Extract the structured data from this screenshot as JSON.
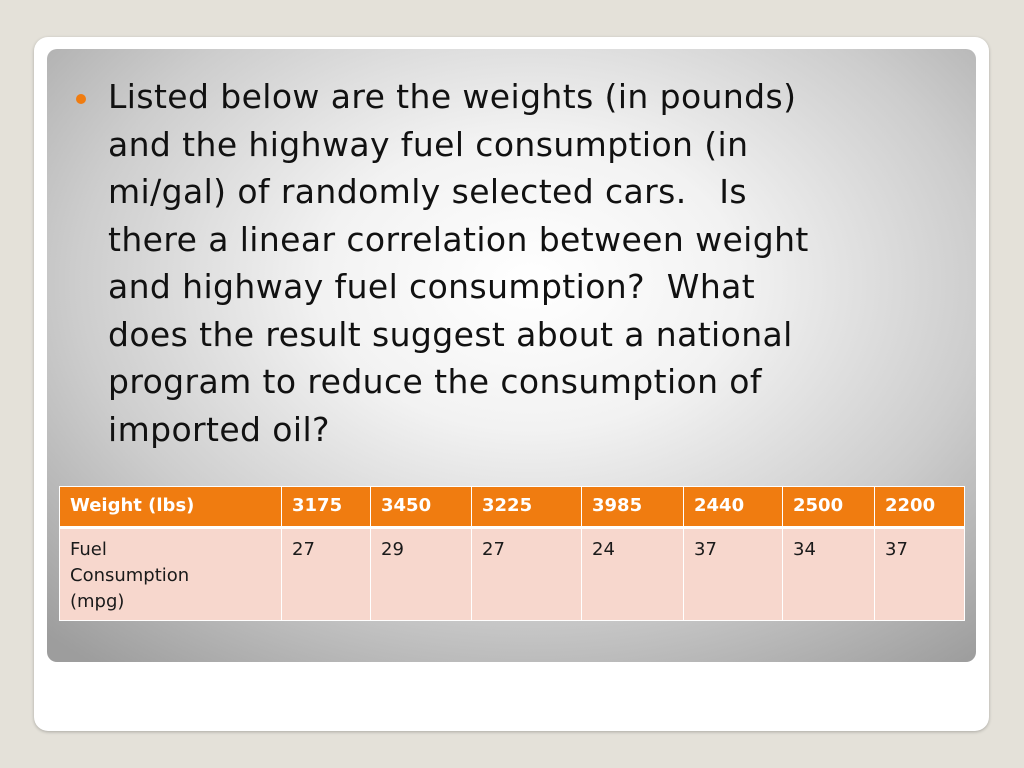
{
  "body": {
    "bullet_lines": [
      "Listed below are the weights (in pounds)",
      "and the highway fuel consumption (in",
      "mi/gal) of randomly selected cars.   Is",
      "there a linear correlation between weight",
      "and highway fuel consumption?  What",
      "does the result suggest about a national",
      "program to reduce the consumption of",
      "imported oil?"
    ]
  },
  "table": {
    "header_row": [
      "Weight  (lbs)",
      "3175",
      "3450",
      "3225",
      "3985",
      "2440",
      "2500",
      "2200"
    ],
    "data_row_label_lines": [
      "Fuel",
      "Consumption",
      "(mpg)"
    ],
    "data_row_values": [
      "27",
      "29",
      "27",
      "24",
      "37",
      "34",
      "37"
    ]
  },
  "colors": {
    "accent": "#f07c10",
    "table_body": "#f7d7cd",
    "outer_background": "#e4e1d9"
  }
}
